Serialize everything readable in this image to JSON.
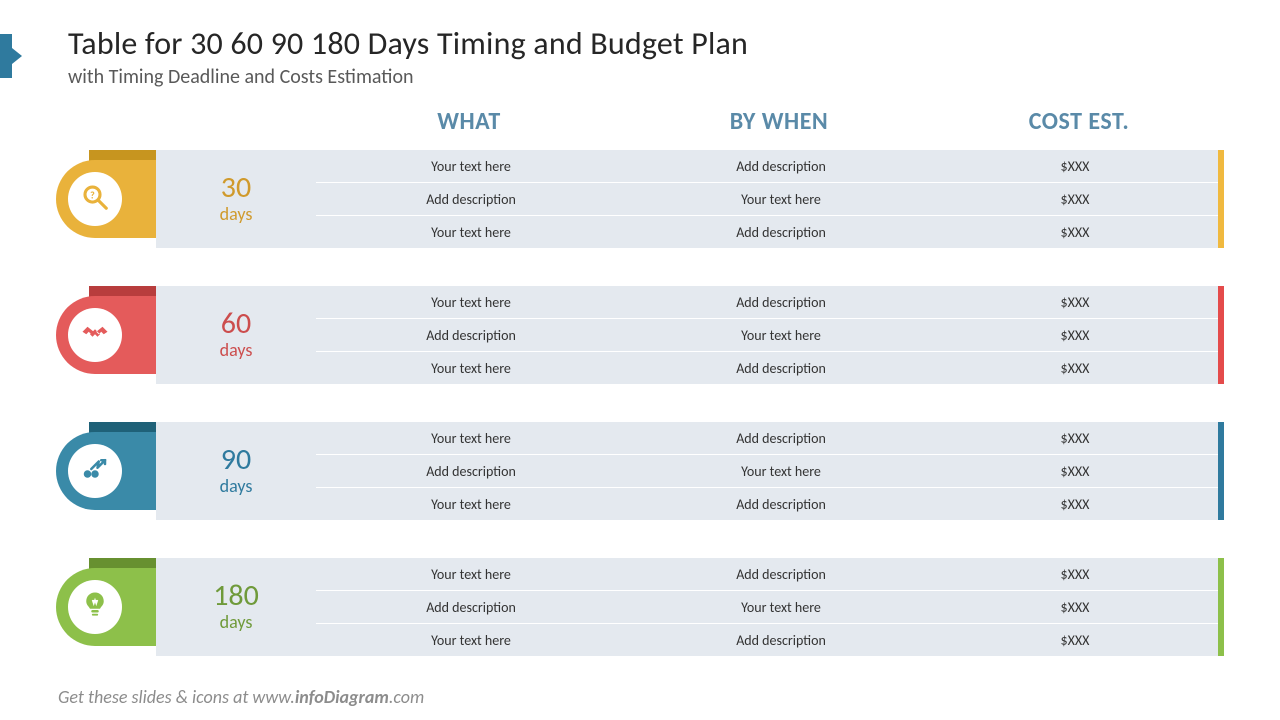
{
  "header": {
    "title": "Table for 30 60 90 180 Days Timing and Budget Plan",
    "subtitle": "with Timing Deadline and Costs Estimation"
  },
  "columns": {
    "c1": "WHAT",
    "c2": "BY WHEN",
    "c3": "COST EST."
  },
  "footer_prefix": "Get these slides & icons at www.",
  "footer_bold": "infoDiagram",
  "footer_suffix": ".com",
  "colors": {
    "header_text": "#5a8aa8",
    "row_bg": "#e4e9ef",
    "cell_text": "#333333"
  },
  "sections": [
    {
      "id": "30",
      "num": "30",
      "label": "days",
      "icon": "magnifier",
      "main_color": "#e9b23b",
      "dark_color": "#c7951f",
      "text_color": "#d09a2c",
      "edge_color": "#f0b93f",
      "rows": [
        {
          "what": "Your text here",
          "when": "Add description",
          "cost": "$XXX"
        },
        {
          "what": "Add description",
          "when": "Your text here",
          "cost": "$XXX"
        },
        {
          "what": "Your text here",
          "when": "Add description",
          "cost": "$XXX"
        }
      ]
    },
    {
      "id": "60",
      "num": "60",
      "label": "days",
      "icon": "handshake",
      "main_color": "#e45b5b",
      "dark_color": "#b83d3d",
      "text_color": "#cc4d4d",
      "edge_color": "#e44b4b",
      "rows": [
        {
          "what": "Your text here",
          "when": "Add description",
          "cost": "$XXX"
        },
        {
          "what": "Add description",
          "when": "Your text here",
          "cost": "$XXX"
        },
        {
          "what": "Your text here",
          "when": "Add description",
          "cost": "$XXX"
        }
      ]
    },
    {
      "id": "90",
      "num": "90",
      "label": "days",
      "icon": "growth",
      "main_color": "#3a8aa8",
      "dark_color": "#1f6178",
      "text_color": "#2f7a9e",
      "edge_color": "#2f7a9e",
      "rows": [
        {
          "what": "Your text here",
          "when": "Add description",
          "cost": "$XXX"
        },
        {
          "what": "Add description",
          "when": "Your text here",
          "cost": "$XXX"
        },
        {
          "what": "Your text here",
          "when": "Add description",
          "cost": "$XXX"
        }
      ]
    },
    {
      "id": "180",
      "num": "180",
      "label": "days",
      "icon": "bulb",
      "main_color": "#8dc04a",
      "dark_color": "#679030",
      "text_color": "#6f9a3a",
      "edge_color": "#8dc04a",
      "rows": [
        {
          "what": "Your text here",
          "when": "Add description",
          "cost": "$XXX"
        },
        {
          "what": "Add description",
          "when": "Your text here",
          "cost": "$XXX"
        },
        {
          "what": "Your text here",
          "when": "Add description",
          "cost": "$XXX"
        }
      ]
    }
  ]
}
